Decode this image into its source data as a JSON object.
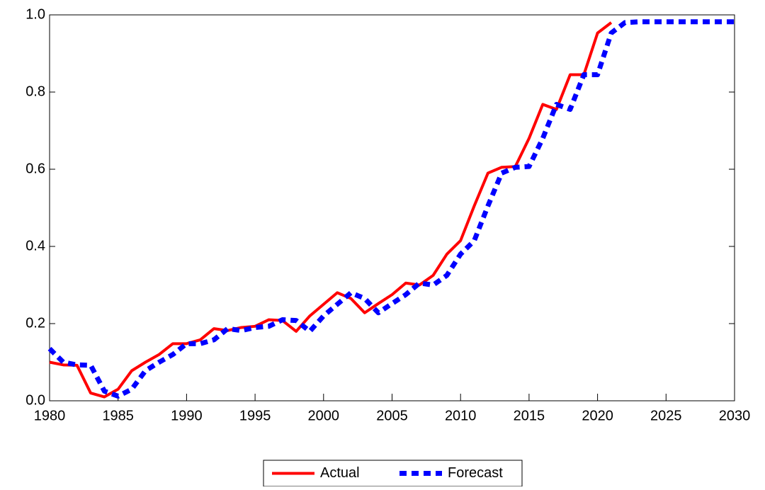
{
  "chart_data": {
    "type": "line",
    "x": [
      1980,
      1981,
      1982,
      1983,
      1984,
      1985,
      1986,
      1987,
      1988,
      1989,
      1990,
      1991,
      1992,
      1993,
      1994,
      1995,
      1996,
      1997,
      1998,
      1999,
      2000,
      2001,
      2002,
      2003,
      2004,
      2005,
      2006,
      2007,
      2008,
      2009,
      2010,
      2011,
      2012,
      2013,
      2014,
      2015,
      2016,
      2017,
      2018,
      2019,
      2020,
      2021,
      2022,
      2023,
      2024,
      2025,
      2026,
      2027,
      2028,
      2029,
      2030
    ],
    "series": [
      {
        "name": "Actual",
        "color": "#ff0000",
        "dashed": false,
        "values": [
          0.1,
          0.093,
          0.092,
          0.02,
          0.01,
          0.03,
          0.078,
          0.1,
          0.12,
          0.148,
          0.148,
          0.158,
          0.187,
          0.182,
          0.19,
          0.193,
          0.21,
          0.208,
          0.18,
          0.22,
          0.25,
          0.28,
          0.265,
          0.228,
          0.252,
          0.275,
          0.305,
          0.3,
          0.325,
          0.38,
          0.415,
          0.505,
          0.59,
          0.605,
          0.607,
          0.68,
          0.768,
          0.755,
          0.845,
          0.845,
          0.953,
          0.98,
          null,
          null,
          null,
          null,
          null,
          null,
          null,
          null,
          null
        ]
      },
      {
        "name": "Forecast",
        "color": "#0000ff",
        "dashed": true,
        "values": [
          0.135,
          0.1,
          0.093,
          0.092,
          0.025,
          0.012,
          0.03,
          0.078,
          0.1,
          0.12,
          0.148,
          0.148,
          0.158,
          0.187,
          0.182,
          0.19,
          0.193,
          0.21,
          0.208,
          0.18,
          0.22,
          0.25,
          0.28,
          0.265,
          0.228,
          0.252,
          0.275,
          0.305,
          0.3,
          0.325,
          0.38,
          0.415,
          0.505,
          0.59,
          0.605,
          0.607,
          0.68,
          0.768,
          0.755,
          0.845,
          0.845,
          0.953,
          0.98,
          0.982,
          0.982,
          0.982,
          0.982,
          0.982,
          0.982,
          0.982,
          0.982
        ]
      }
    ],
    "xlim": [
      1980,
      2030
    ],
    "xticks": [
      1980,
      1985,
      1990,
      1995,
      2000,
      2005,
      2010,
      2015,
      2020,
      2025,
      2030
    ],
    "ylim": [
      0,
      1
    ],
    "yticks": [
      {
        "value": 0,
        "label": "0.0"
      },
      {
        "value": 0.2,
        "label": "0.2"
      },
      {
        "value": 0.4,
        "label": "0.4"
      },
      {
        "value": 0.6,
        "label": "0.6"
      },
      {
        "value": 0.8,
        "label": "0.8"
      },
      {
        "value": 1,
        "label": "1.0"
      }
    ],
    "grid": false,
    "legend": "bottom"
  }
}
